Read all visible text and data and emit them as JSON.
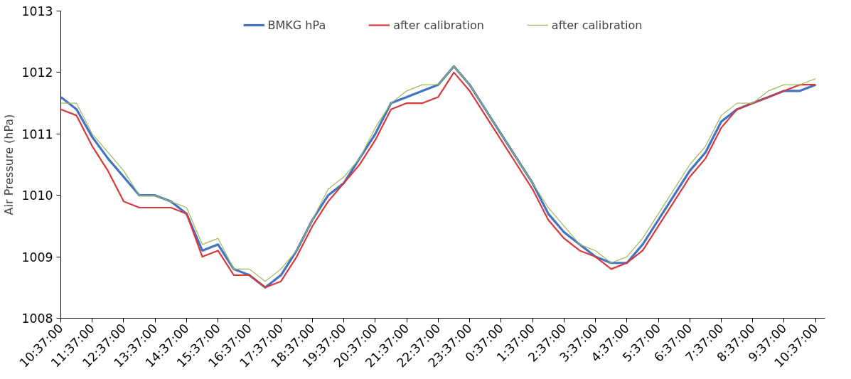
{
  "chart_data": {
    "type": "line",
    "ylabel": "Air Pressure (hPa)",
    "categories": [
      "10:37:00",
      null,
      "11:37:00",
      null,
      "12:37:00",
      null,
      "13:37:00",
      null,
      "14:37:00",
      null,
      "15:37:00",
      null,
      "16:37:00",
      null,
      "17:37:00",
      null,
      "18:37:00",
      null,
      "19:37:00",
      null,
      "20:37:00",
      null,
      "21:37:00",
      null,
      "22:37:00",
      null,
      "23:37:00",
      null,
      "0:37:00",
      null,
      "1:37:00",
      null,
      "2:37:00",
      null,
      "3:37:00",
      null,
      "4:37:00",
      null,
      "5:37:00",
      null,
      "6:37:00",
      null,
      "7:37:00",
      null,
      "8:37:00",
      null,
      "9:37:00",
      null,
      "10:37:00"
    ],
    "series": [
      {
        "name": "BMKG hPa",
        "color": "#4472c4",
        "values": [
          1011.6,
          1011.4,
          1010.95,
          1010.6,
          1010.3,
          1010.0,
          1010.0,
          1009.9,
          1009.7,
          1009.1,
          1009.2,
          1008.8,
          1008.7,
          1008.5,
          1008.7,
          1009.1,
          1009.6,
          1010.0,
          1010.2,
          1010.6,
          1011.0,
          1011.5,
          1011.6,
          1011.7,
          1011.8,
          1012.1,
          1011.8,
          1011.4,
          1011.0,
          1010.6,
          1010.2,
          1009.7,
          1009.4,
          1009.2,
          1009.0,
          1008.9,
          1008.9,
          1009.2,
          1009.6,
          1010.0,
          1010.4,
          1010.7,
          1011.2,
          1011.4,
          1011.5,
          1011.6,
          1011.7,
          1011.7,
          1011.8
        ]
      },
      {
        "name": "after calibration",
        "color": "#d9383a",
        "values": [
          1011.4,
          1011.3,
          1010.8,
          1010.4,
          1009.9,
          1009.8,
          1009.8,
          1009.8,
          1009.7,
          1009.0,
          1009.1,
          1008.7,
          1008.7,
          1008.5,
          1008.6,
          1009.0,
          1009.5,
          1009.9,
          1010.2,
          1010.5,
          1010.9,
          1011.4,
          1011.5,
          1011.5,
          1011.6,
          1012.0,
          1011.7,
          1011.3,
          1010.9,
          1010.5,
          1010.1,
          1009.6,
          1009.3,
          1009.1,
          1009.0,
          1008.8,
          1008.9,
          1009.1,
          1009.5,
          1009.9,
          1010.3,
          1010.6,
          1011.1,
          1011.4,
          1011.5,
          1011.6,
          1011.7,
          1011.8,
          1011.8
        ]
      },
      {
        "name": "after calibration",
        "color": "#9bbb59",
        "values": [
          1011.5,
          1011.5,
          1011.0,
          1010.7,
          1010.4,
          1010.0,
          1010.0,
          1009.9,
          1009.8,
          1009.2,
          1009.3,
          1008.8,
          1008.8,
          1008.6,
          1008.8,
          1009.1,
          1009.6,
          1010.1,
          1010.3,
          1010.6,
          1011.1,
          1011.5,
          1011.7,
          1011.8,
          1011.8,
          1012.1,
          1011.8,
          1011.4,
          1011.0,
          1010.6,
          1010.2,
          1009.8,
          1009.5,
          1009.2,
          1009.1,
          1008.9,
          1009.0,
          1009.3,
          1009.7,
          1010.1,
          1010.5,
          1010.8,
          1011.3,
          1011.5,
          1011.5,
          1011.7,
          1011.8,
          1011.8,
          1011.9
        ]
      }
    ],
    "ylim": [
      1008,
      1013
    ],
    "yticks": [
      1008,
      1009,
      1010,
      1011,
      1012,
      1013
    ],
    "grid": false,
    "legend": "top",
    "marker": "none",
    "line_style": "solid"
  }
}
